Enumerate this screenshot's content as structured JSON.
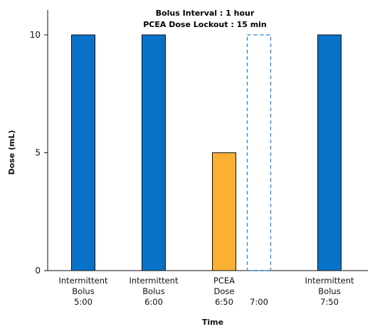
{
  "chart_data": {
    "type": "bar",
    "xlabel": "Time",
    "ylabel": "Dose (mL)",
    "ylim": [
      0,
      11
    ],
    "yticks": [
      0,
      5,
      10
    ],
    "grid": false,
    "annotations": [
      {
        "text": "Bolus Interval : 1 hour",
        "color": "#1a7fd1"
      },
      {
        "text": "PCEA Dose Lockout : 15 min",
        "color": "#f6ab35"
      }
    ],
    "categories": [
      [
        "Intermittent",
        "Bolus",
        "5:00"
      ],
      [
        "Intermittent",
        "Bolus",
        "6:00"
      ],
      [
        "PCEA",
        "Dose",
        "6:50"
      ],
      [
        "7:00"
      ],
      [
        "Intermittent",
        "Bolus",
        "7:50"
      ]
    ],
    "bars": [
      {
        "value": 10,
        "kind": "bolus"
      },
      {
        "value": 10,
        "kind": "bolus"
      },
      {
        "value": 5,
        "kind": "pcea"
      },
      {
        "value": 10,
        "kind": "skipped"
      },
      {
        "value": 10,
        "kind": "bolus"
      }
    ],
    "colors": {
      "bolus": "#0872c9",
      "pcea": "#fbb034",
      "skipped": "#1a7fd1",
      "edge": "#111111"
    }
  }
}
